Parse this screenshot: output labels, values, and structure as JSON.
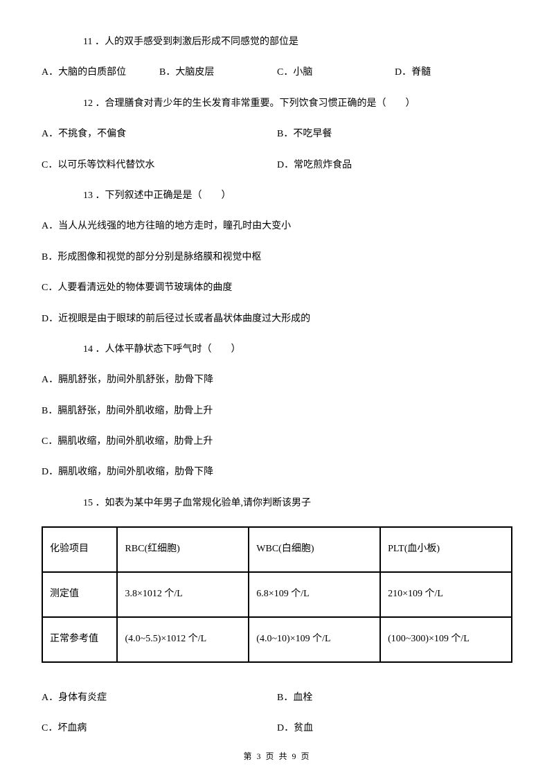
{
  "q11": {
    "text": "11 ．人的双手感受到刺激后形成不同感觉的部位是",
    "a": "A．大脑的白质部位",
    "b": "B．大脑皮层",
    "c": "C．小脑",
    "d": "D．脊髓"
  },
  "q12": {
    "text": "12 ．合理膳食对青少年的生长发育非常重要。下列饮食习惯正确的是（　　）",
    "a": "A．不挑食，不偏食",
    "b": "B．不吃早餐",
    "c": "C．以可乐等饮料代替饮水",
    "d": "D．常吃煎炸食品"
  },
  "q13": {
    "text": "13 ．下列叙述中正确是是（　　）",
    "a": "A．当人从光线强的地方往暗的地方走时，瞳孔时由大变小",
    "b": "B．形成图像和视觉的部分分别是脉络膜和视觉中枢",
    "c": "C．人要看清远处的物体要调节玻璃体的曲度",
    "d": "D．近视眼是由于眼球的前后径过长或者晶状体曲度过大形成的"
  },
  "q14": {
    "text": "14 ．人体平静状态下呼气时（　　）",
    "a": "A．膈肌舒张，肋间外肌舒张，肋骨下降",
    "b": "B．膈肌舒张，肋间外肌收缩，肋骨上升",
    "c": "C．膈肌收缩，肋间外肌收缩，肋骨上升",
    "d": "D．膈肌收缩，肋间外肌收缩，肋骨下降"
  },
  "q15": {
    "text": "15 ．如表为某中年男子血常规化验单,请你判断该男子",
    "table": {
      "r1c1": "化验项目",
      "r1c2": "RBC(红细胞)",
      "r1c3": "WBC(白细胞)",
      "r1c4": "PLT(血小板)",
      "r2c1": "测定值",
      "r2c2": "3.8×1012 个/L",
      "r2c3": "6.8×109 个/L",
      "r2c4": "210×109 个/L",
      "r3c1": "正常参考值",
      "r3c2": "(4.0~5.5)×1012 个/L",
      "r3c3": "(4.0~10)×109 个/L",
      "r3c4": "(100~300)×109 个/L"
    },
    "a": "A．身体有炎症",
    "b": "B．血栓",
    "c": "C．坏血病",
    "d": "D．贫血"
  },
  "footer": "第 3 页 共 9 页"
}
